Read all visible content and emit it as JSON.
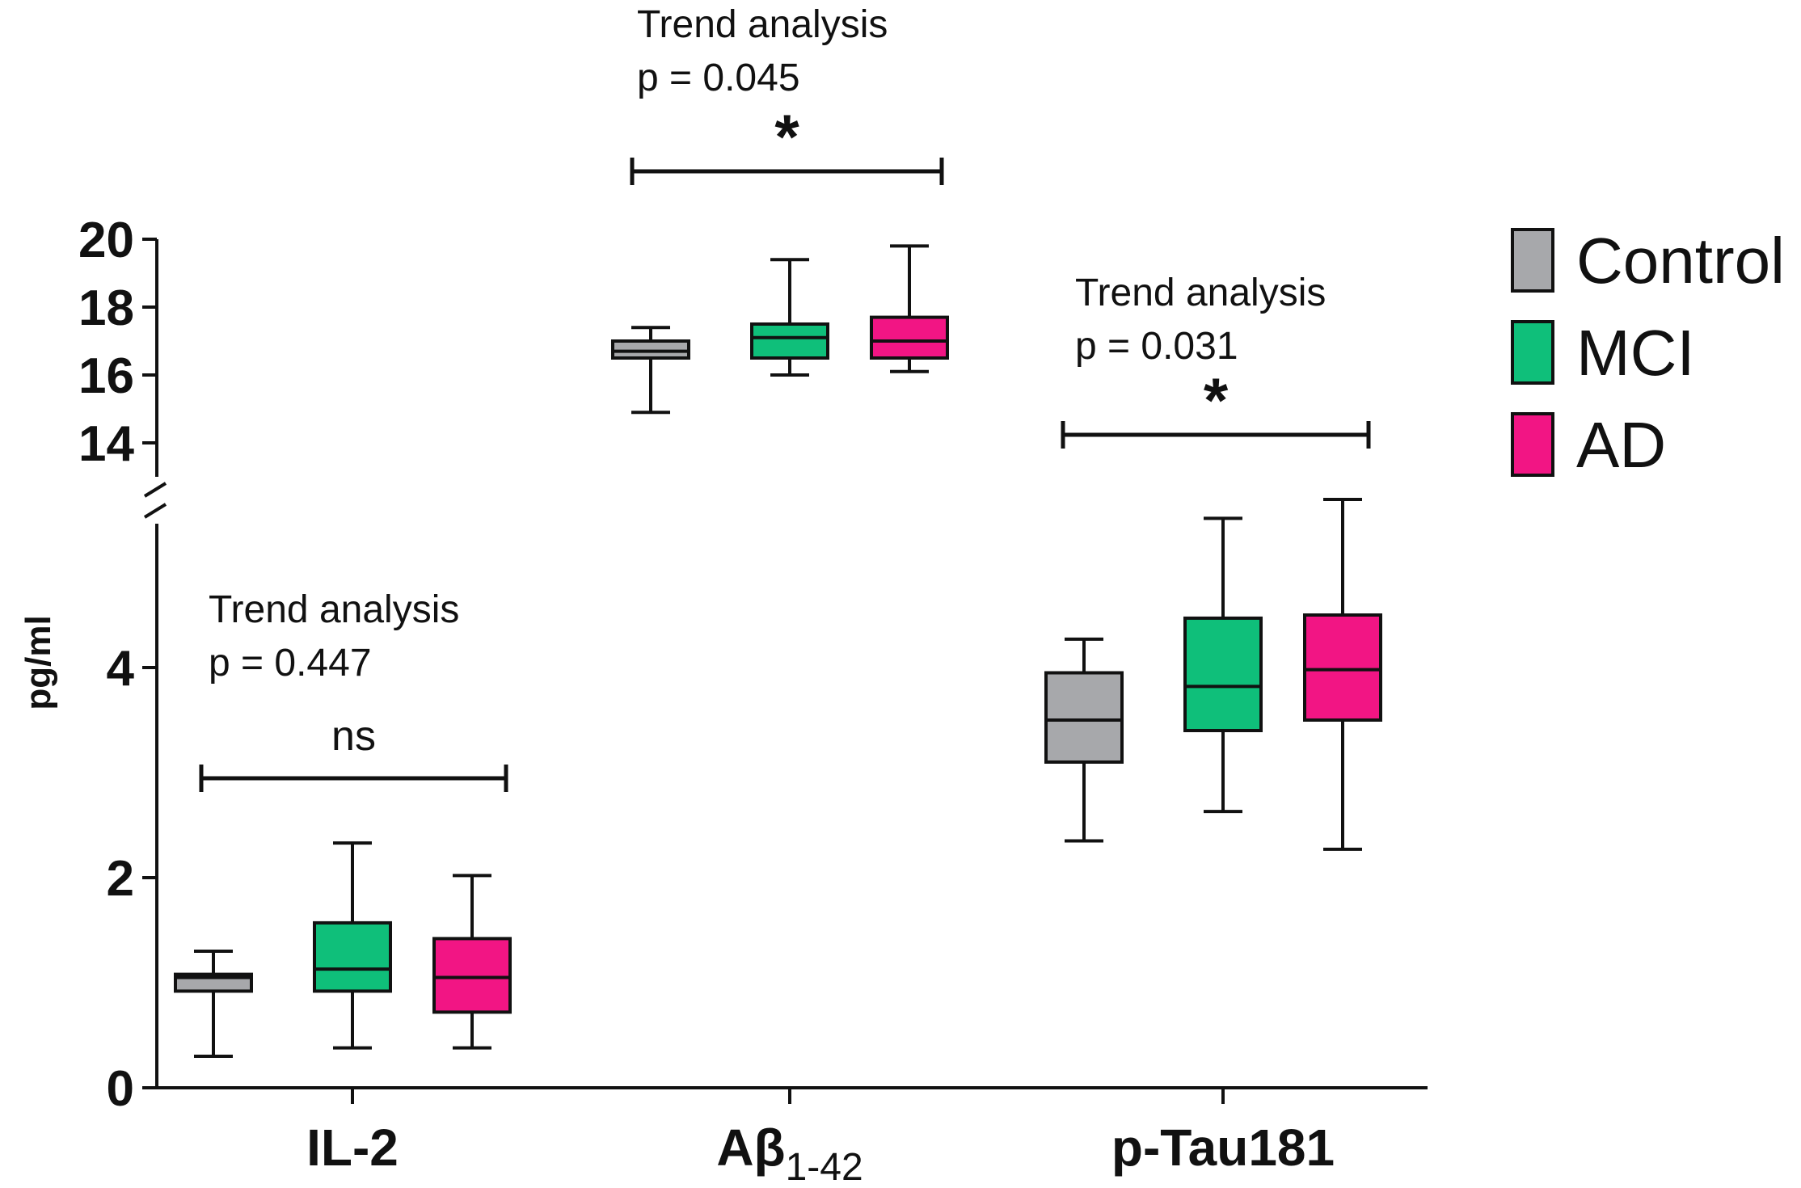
{
  "chart_data": {
    "type": "box",
    "ylabel": "pg/ml",
    "y_axis": {
      "broken": true,
      "lower_range": [
        0,
        5.6
      ],
      "upper_range": [
        13,
        20
      ],
      "lower_ticks": [
        0,
        2,
        4
      ],
      "upper_ticks": [
        14,
        16,
        18,
        20
      ]
    },
    "categories": [
      {
        "label": "IL-2",
        "main": "IL-2",
        "sub": ""
      },
      {
        "label": "Aβ1-42",
        "main": "Aβ",
        "sub": "1-42"
      },
      {
        "label": "p-Tau181",
        "main": "p-Tau181",
        "sub": ""
      }
    ],
    "series": [
      {
        "name": "Control",
        "color": "#a7a8ab",
        "boxes": [
          {
            "min": 0.3,
            "q1": 0.92,
            "median": 1.05,
            "q3": 1.08,
            "max": 1.3
          },
          {
            "min": 14.9,
            "q1": 16.5,
            "median": 16.7,
            "q3": 17.0,
            "max": 17.4
          },
          {
            "min": 2.35,
            "q1": 3.1,
            "median": 3.5,
            "q3": 3.95,
            "max": 4.27
          }
        ]
      },
      {
        "name": "MCI",
        "color": "#0fbf7a",
        "boxes": [
          {
            "min": 0.38,
            "q1": 0.92,
            "median": 1.13,
            "q3": 1.57,
            "max": 2.33
          },
          {
            "min": 16.0,
            "q1": 16.5,
            "median": 17.1,
            "q3": 17.5,
            "max": 19.4
          },
          {
            "min": 2.63,
            "q1": 3.4,
            "median": 3.82,
            "q3": 4.47,
            "max": 5.42
          }
        ]
      },
      {
        "name": "AD",
        "color": "#f21584",
        "boxes": [
          {
            "min": 0.38,
            "q1": 0.72,
            "median": 1.05,
            "q3": 1.42,
            "max": 2.02
          },
          {
            "min": 16.1,
            "q1": 16.5,
            "median": 17.0,
            "q3": 17.7,
            "max": 19.8
          },
          {
            "min": 2.27,
            "q1": 3.5,
            "median": 3.98,
            "q3": 4.5,
            "max": 5.6
          }
        ]
      }
    ],
    "annotations": [
      {
        "category": "IL-2",
        "line1": "Trend analysis",
        "line2": "p = 0.447",
        "sig": "ns"
      },
      {
        "category": "Aβ1-42",
        "line1": "Trend analysis",
        "line2": "p = 0.045",
        "sig": "*"
      },
      {
        "category": "p-Tau181",
        "line1": "Trend analysis",
        "line2": "p = 0.031",
        "sig": "*"
      }
    ],
    "legend": {
      "position": "right",
      "entries": [
        "Control",
        "MCI",
        "AD"
      ]
    }
  }
}
